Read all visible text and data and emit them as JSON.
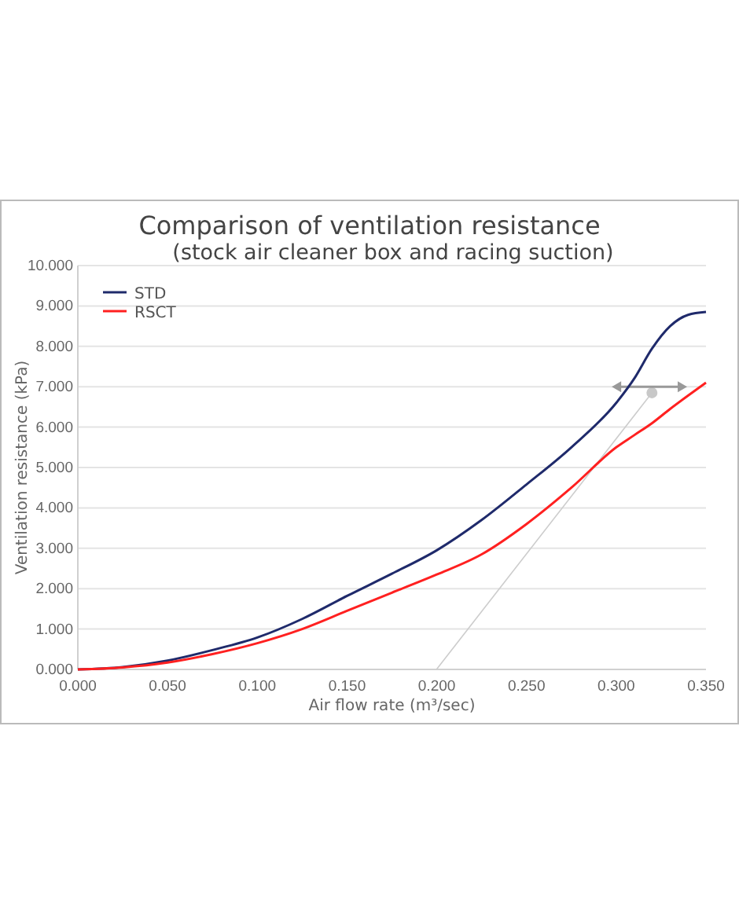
{
  "chart_data": {
    "type": "line",
    "title": "Comparison of ventilation resistance",
    "subtitle": "(stock air cleaner box and racing suction)",
    "xlabel": "Air flow rate (m³/sec)",
    "ylabel": "Ventilation resistance (kPa)",
    "x": [
      0,
      0.025,
      0.05,
      0.075,
      0.1,
      0.125,
      0.15,
      0.175,
      0.2,
      0.225,
      0.25,
      0.275,
      0.3,
      0.31,
      0.32,
      0.33,
      0.34,
      0.35
    ],
    "series": [
      {
        "name": "STD",
        "color": "#1f2a6b",
        "values": [
          0,
          0.06,
          0.22,
          0.48,
          0.79,
          1.25,
          1.82,
          2.37,
          2.95,
          3.7,
          4.58,
          5.5,
          6.6,
          7.2,
          7.95,
          8.5,
          8.78,
          8.85
        ]
      },
      {
        "name": "RSCT",
        "color": "#ff2020",
        "values": [
          0,
          0.05,
          0.17,
          0.38,
          0.65,
          1.0,
          1.45,
          1.9,
          2.35,
          2.85,
          3.6,
          4.5,
          5.5,
          5.8,
          6.1,
          6.45,
          6.78,
          7.1
        ]
      }
    ],
    "xlim": [
      0,
      0.35
    ],
    "xticks": [
      {
        "value": 0,
        "label": "0.000"
      },
      {
        "value": 0.05,
        "label": "0.050"
      },
      {
        "value": 0.1,
        "label": "0.100"
      },
      {
        "value": 0.15,
        "label": "0.150"
      },
      {
        "value": 0.2,
        "label": "0.200"
      },
      {
        "value": 0.25,
        "label": "0.250"
      },
      {
        "value": 0.3,
        "label": "0.300"
      },
      {
        "value": 0.35,
        "label": "0.350"
      }
    ],
    "ylim": [
      0,
      10
    ],
    "yticks": [
      {
        "value": 0,
        "label": "0.000"
      },
      {
        "value": 1,
        "label": "1.000"
      },
      {
        "value": 2,
        "label": "2.000"
      },
      {
        "value": 3,
        "label": "3.000"
      },
      {
        "value": 4,
        "label": "4.000"
      },
      {
        "value": 5,
        "label": "5.000"
      },
      {
        "value": 6,
        "label": "6.000"
      },
      {
        "value": 7,
        "label": "7.000"
      },
      {
        "value": 8,
        "label": "8.000"
      },
      {
        "value": 9,
        "label": "9.000"
      },
      {
        "value": 10,
        "label": "10.000"
      }
    ],
    "grid": "y",
    "legend": "top left",
    "marker": "none",
    "line_style": "solid"
  }
}
